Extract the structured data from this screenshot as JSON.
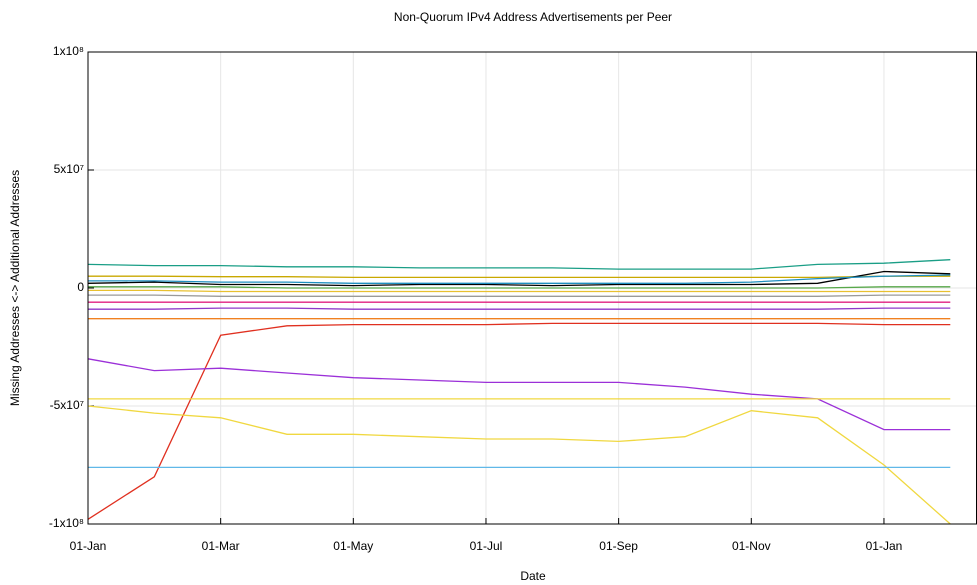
{
  "chart_data": {
    "type": "line",
    "title": "Non-Quorum IPv4 Address Advertisements per Peer",
    "xlabel": "Date",
    "ylabel": "Missing Addresses <-> Additional Addresses",
    "categories": [
      "01-Jan",
      null,
      "01-Mar",
      null,
      "01-May",
      null,
      "01-Jul",
      null,
      "01-Sep",
      null,
      "01-Nov",
      null,
      "01-Jan",
      null
    ],
    "ylim": [
      -100000000,
      100000000
    ],
    "yticks": [
      {
        "value": -100000000,
        "label": "-1x10⁸"
      },
      {
        "value": -50000000,
        "label": "-5x10⁷"
      },
      0,
      {
        "value": 50000000,
        "label": "5x10⁷"
      },
      {
        "value": 100000000,
        "label": "1x10⁸"
      }
    ],
    "grid": true,
    "series": [
      {
        "color": "#1a9e86",
        "values": [
          10000000,
          9500000,
          9500000,
          9000000,
          9000000,
          8500000,
          8500000,
          8500000,
          8000000,
          8000000,
          8000000,
          10000000,
          10500000,
          12000000
        ]
      },
      {
        "color": "#c9a800",
        "values": [
          5000000,
          5000000,
          4800000,
          4800000,
          4500000,
          4500000,
          4500000,
          4500000,
          4500000,
          4500000,
          4500000,
          4500000,
          5000000,
          5000000
        ]
      },
      {
        "color": "#000000",
        "values": [
          2000000,
          2500000,
          1500000,
          1500000,
          1000000,
          1500000,
          1500000,
          1000000,
          1500000,
          1500000,
          1500000,
          2000000,
          7000000,
          6000000
        ]
      },
      {
        "color": "#1f8fc0",
        "values": [
          3000000,
          3000000,
          2500000,
          2500000,
          2000000,
          2000000,
          2000000,
          2000000,
          2000000,
          2000000,
          2500000,
          4000000,
          5000000,
          5500000
        ]
      },
      {
        "color": "#58a84a",
        "values": [
          500000,
          500000,
          500000,
          0,
          0,
          0,
          0,
          0,
          0,
          0,
          0,
          0,
          500000,
          500000
        ]
      },
      {
        "color": "#e8c030",
        "values": [
          -1000000,
          -1000000,
          -1500000,
          -1500000,
          -1500000,
          -1500000,
          -1500000,
          -1500000,
          -1500000,
          -1500000,
          -1500000,
          -1500000,
          -1500000,
          -1500000
        ]
      },
      {
        "color": "#9a9a9a",
        "values": [
          -3000000,
          -3000000,
          -3500000,
          -3500000,
          -3500000,
          -3500000,
          -3500000,
          -3500000,
          -3500000,
          -3500000,
          -3500000,
          -3500000,
          -3000000,
          -3000000
        ]
      },
      {
        "color": "#e02080",
        "values": [
          -6000000,
          -6000000,
          -6000000,
          -6000000,
          -6000000,
          -6000000,
          -6000000,
          -6000000,
          -6000000,
          -6000000,
          -6000000,
          -6000000,
          -6000000,
          -6000000
        ]
      },
      {
        "color": "#8f38c8",
        "values": [
          -9000000,
          -9000000,
          -8500000,
          -8500000,
          -9000000,
          -9000000,
          -9000000,
          -9000000,
          -9000000,
          -9000000,
          -9000000,
          -9000000,
          -8500000,
          -8500000
        ]
      },
      {
        "color": "#f08020",
        "values": [
          -13000000,
          -13000000,
          -13000000,
          -13000000,
          -13000000,
          -13000000,
          -13000000,
          -13000000,
          -13000000,
          -13000000,
          -13000000,
          -13000000,
          -13000000,
          -13000000
        ]
      },
      {
        "color": "#e03020",
        "values": [
          -98000000,
          -80000000,
          -20000000,
          -16000000,
          -15500000,
          -15500000,
          -15500000,
          -15000000,
          -15000000,
          -15000000,
          -15000000,
          -15000000,
          -15500000,
          -15500000
        ]
      },
      {
        "color": "#9b30d8",
        "values": [
          -30000000,
          -35000000,
          -34000000,
          -36000000,
          -38000000,
          -39000000,
          -40000000,
          -40000000,
          -40000000,
          -42000000,
          -45000000,
          -47000000,
          -60000000,
          -60000000
        ]
      },
      {
        "color": "#f0d840",
        "values": [
          -47000000,
          -47000000,
          -47000000,
          -47000000,
          -47000000,
          -47000000,
          -47000000,
          -47000000,
          -47000000,
          -47000000,
          -47000000,
          -47000000,
          -47000000,
          -47000000
        ]
      },
      {
        "color": "#f0d840",
        "values": [
          -50000000,
          -53000000,
          -55000000,
          -62000000,
          -62000000,
          -63000000,
          -64000000,
          -64000000,
          -65000000,
          -63000000,
          -52000000,
          -55000000,
          -75000000,
          -100000000
        ]
      },
      {
        "color": "#60b8e8",
        "values": [
          -76000000,
          -76000000,
          -76000000,
          -76000000,
          -76000000,
          -76000000,
          -76000000,
          -76000000,
          -76000000,
          -76000000,
          -76000000,
          -76000000,
          -76000000,
          -76000000
        ]
      }
    ]
  }
}
